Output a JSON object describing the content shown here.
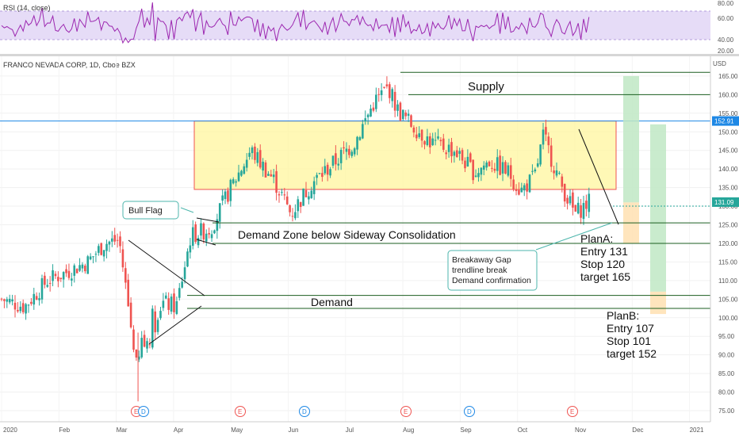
{
  "rsi": {
    "label": "RSI (14, close)",
    "ticks": [
      "80.00",
      "60.00",
      "40.00",
      "20.00"
    ],
    "band_color": "#e6dcf7",
    "line_color": "#9c27b0"
  },
  "main": {
    "symbol_label": "FRANCO NEVADA CORP, 1D, Cboe BZX",
    "currency": "USD",
    "last_price": "131.09",
    "supply_price": "152.91",
    "up_color": "#26a69a",
    "down_color": "#ef5350"
  },
  "annotations": {
    "supply": "Supply",
    "demand_zone": "Demand Zone below Sideway Consolidation",
    "demand": "Demand",
    "bull_flag": "Bull Flag",
    "breakaway": [
      "Breakaway Gap",
      "trendline break",
      "Demand confirmation"
    ],
    "plan_a": [
      "PlanA:",
      "Entry 131",
      "Stop 120",
      "target 165"
    ],
    "plan_b": [
      "PlanB:",
      "Entry 107",
      "Stop 101",
      "target 152"
    ]
  },
  "events": [
    {
      "letter": "E",
      "kind": "earnings"
    },
    {
      "letter": "D",
      "kind": "dividend"
    },
    {
      "letter": "E",
      "kind": "earnings"
    },
    {
      "letter": "D",
      "kind": "dividend"
    },
    {
      "letter": "E",
      "kind": "earnings"
    },
    {
      "letter": "D",
      "kind": "dividend"
    },
    {
      "letter": "E",
      "kind": "earnings"
    }
  ],
  "chart_data": {
    "type": "candlestick",
    "y_ticks": [
      75,
      80,
      85,
      90,
      95,
      100,
      105,
      110,
      115,
      120,
      125,
      130,
      135,
      140,
      145,
      150,
      155,
      160,
      165
    ],
    "x_ticks": [
      "2020",
      "Feb",
      "Mar",
      "Apr",
      "May",
      "Jun",
      "Jul",
      "Aug",
      "Sep",
      "Oct",
      "Nov",
      "Dec",
      "2021"
    ],
    "levels": {
      "supply_high": 166,
      "supply_low": 160,
      "range_top": 152.91,
      "range_bottom": 134.5,
      "demand_zone_high": 125.5,
      "demand_zone_low": 120,
      "demand_high": 106,
      "demand_low": 102.5
    },
    "waypoints": [
      {
        "m": 0.0,
        "p": 105
      },
      {
        "m": 0.4,
        "p": 103
      },
      {
        "m": 0.8,
        "p": 110
      },
      {
        "m": 1.1,
        "p": 112
      },
      {
        "m": 1.5,
        "p": 115
      },
      {
        "m": 1.8,
        "p": 120
      },
      {
        "m": 2.05,
        "p": 121
      },
      {
        "m": 2.35,
        "p": 88
      },
      {
        "m": 2.6,
        "p": 98
      },
      {
        "m": 2.8,
        "p": 104
      },
      {
        "m": 3.05,
        "p": 103
      },
      {
        "m": 3.3,
        "p": 122
      },
      {
        "m": 3.65,
        "p": 124
      },
      {
        "m": 4.0,
        "p": 135
      },
      {
        "m": 4.35,
        "p": 145
      },
      {
        "m": 4.75,
        "p": 137
      },
      {
        "m": 5.05,
        "p": 128
      },
      {
        "m": 5.4,
        "p": 136
      },
      {
        "m": 5.75,
        "p": 141
      },
      {
        "m": 6.15,
        "p": 147
      },
      {
        "m": 6.5,
        "p": 158
      },
      {
        "m": 6.75,
        "p": 162
      },
      {
        "m": 6.9,
        "p": 156
      },
      {
        "m": 7.15,
        "p": 152
      },
      {
        "m": 7.5,
        "p": 147
      },
      {
        "m": 7.9,
        "p": 145
      },
      {
        "m": 8.25,
        "p": 139
      },
      {
        "m": 8.5,
        "p": 142
      },
      {
        "m": 8.85,
        "p": 139
      },
      {
        "m": 9.05,
        "p": 134
      },
      {
        "m": 9.3,
        "p": 138
      },
      {
        "m": 9.45,
        "p": 149
      },
      {
        "m": 9.75,
        "p": 136
      },
      {
        "m": 10.0,
        "p": 128
      },
      {
        "m": 10.25,
        "p": 131.09
      }
    ],
    "plan_a": {
      "entry": 131,
      "stop": 120,
      "target": 165
    },
    "plan_b": {
      "entry": 107,
      "stop": 101,
      "target": 152
    }
  }
}
